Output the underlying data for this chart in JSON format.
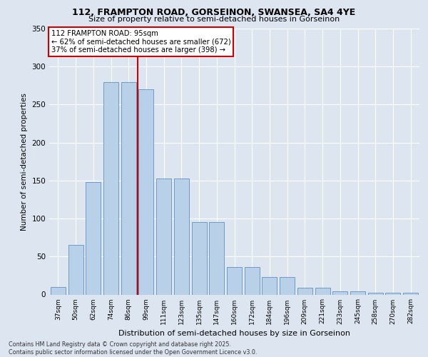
{
  "title1": "112, FRAMPTON ROAD, GORSEINON, SWANSEA, SA4 4YE",
  "title2": "Size of property relative to semi-detached houses in Gorseinon",
  "xlabel": "Distribution of semi-detached houses by size in Gorseinon",
  "ylabel": "Number of semi-detached properties",
  "categories": [
    "37sqm",
    "50sqm",
    "62sqm",
    "74sqm",
    "86sqm",
    "99sqm",
    "111sqm",
    "123sqm",
    "135sqm",
    "147sqm",
    "160sqm",
    "172sqm",
    "184sqm",
    "196sqm",
    "209sqm",
    "221sqm",
    "233sqm",
    "245sqm",
    "258sqm",
    "270sqm",
    "282sqm"
  ],
  "values": [
    10,
    65,
    148,
    280,
    280,
    270,
    153,
    153,
    95,
    95,
    36,
    36,
    23,
    23,
    9,
    9,
    4,
    4,
    2,
    2,
    2
  ],
  "bar_color": "#b8d0e8",
  "bar_edge_color": "#6090c0",
  "property_line_color": "#cc0000",
  "annotation_box_color": "#ffffff",
  "annotation_box_edge_color": "#cc0000",
  "annotation_title": "112 FRAMPTON ROAD: 95sqm",
  "annotation_line1": "← 62% of semi-detached houses are smaller (672)",
  "annotation_line2": "37% of semi-detached houses are larger (398) →",
  "background_color": "#dde6f0",
  "ylim": [
    0,
    350
  ],
  "yticks": [
    0,
    50,
    100,
    150,
    200,
    250,
    300,
    350
  ],
  "footnote1": "Contains HM Land Registry data © Crown copyright and database right 2025.",
  "footnote2": "Contains public sector information licensed under the Open Government Licence v3.0.",
  "prop_line_bar_index": 5
}
